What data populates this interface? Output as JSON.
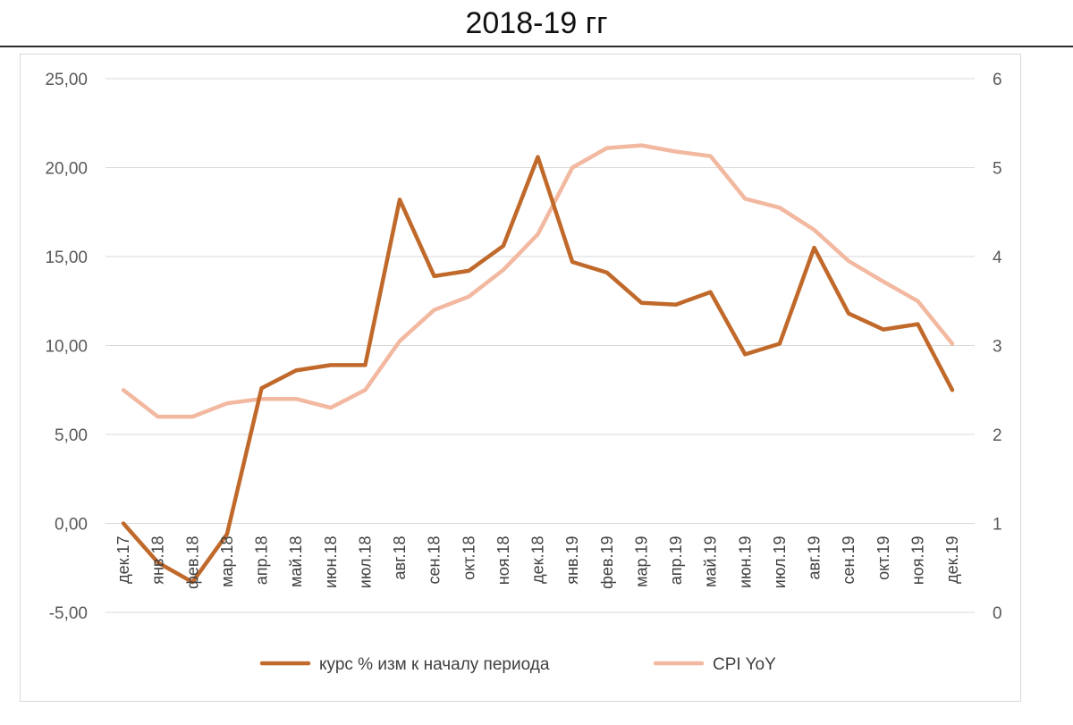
{
  "page": {
    "title": "2018-19  гг"
  },
  "chart_data": {
    "type": "line",
    "categories": [
      "дек.17",
      "янв.18",
      "фев.18",
      "мар.18",
      "апр.18",
      "май.18",
      "июн.18",
      "июл.18",
      "авг.18",
      "сен.18",
      "окт.18",
      "ноя.18",
      "дек.18",
      "янв.19",
      "фев.19",
      "мар.19",
      "апр.19",
      "май.19",
      "июн.19",
      "июл.19",
      "авг.19",
      "сен.19",
      "окт.19",
      "ноя.19",
      "дек.19"
    ],
    "y_left": {
      "min": -5,
      "max": 25,
      "step": 5,
      "tick_labels": [
        "-5,00",
        "0,00",
        "5,00",
        "10,00",
        "15,00",
        "20,00",
        "25,00"
      ]
    },
    "y_right": {
      "min": 0,
      "max": 6,
      "step": 1,
      "tick_labels": [
        "0",
        "1",
        "2",
        "3",
        "4",
        "5",
        "6"
      ]
    },
    "grid": true,
    "legend_position": "bottom",
    "series": [
      {
        "name": "курс  % изм к началу периода",
        "axis": "left",
        "color": "#c0692a",
        "values": [
          0.0,
          -2.2,
          -3.3,
          -0.6,
          7.6,
          8.6,
          8.9,
          8.9,
          18.2,
          13.9,
          14.2,
          15.6,
          20.6,
          14.7,
          14.1,
          12.4,
          12.3,
          13.0,
          9.5,
          10.1,
          15.5,
          11.8,
          10.9,
          11.2,
          7.5
        ]
      },
      {
        "name": "CPI YoY",
        "axis": "right",
        "color": "#f2b8a0",
        "values": [
          2.5,
          2.2,
          2.2,
          2.35,
          2.4,
          2.4,
          2.3,
          2.5,
          3.05,
          3.4,
          3.55,
          3.85,
          4.25,
          5.0,
          5.22,
          5.25,
          5.18,
          5.13,
          4.65,
          4.55,
          4.3,
          3.95,
          3.72,
          3.5,
          3.02
        ]
      }
    ]
  }
}
